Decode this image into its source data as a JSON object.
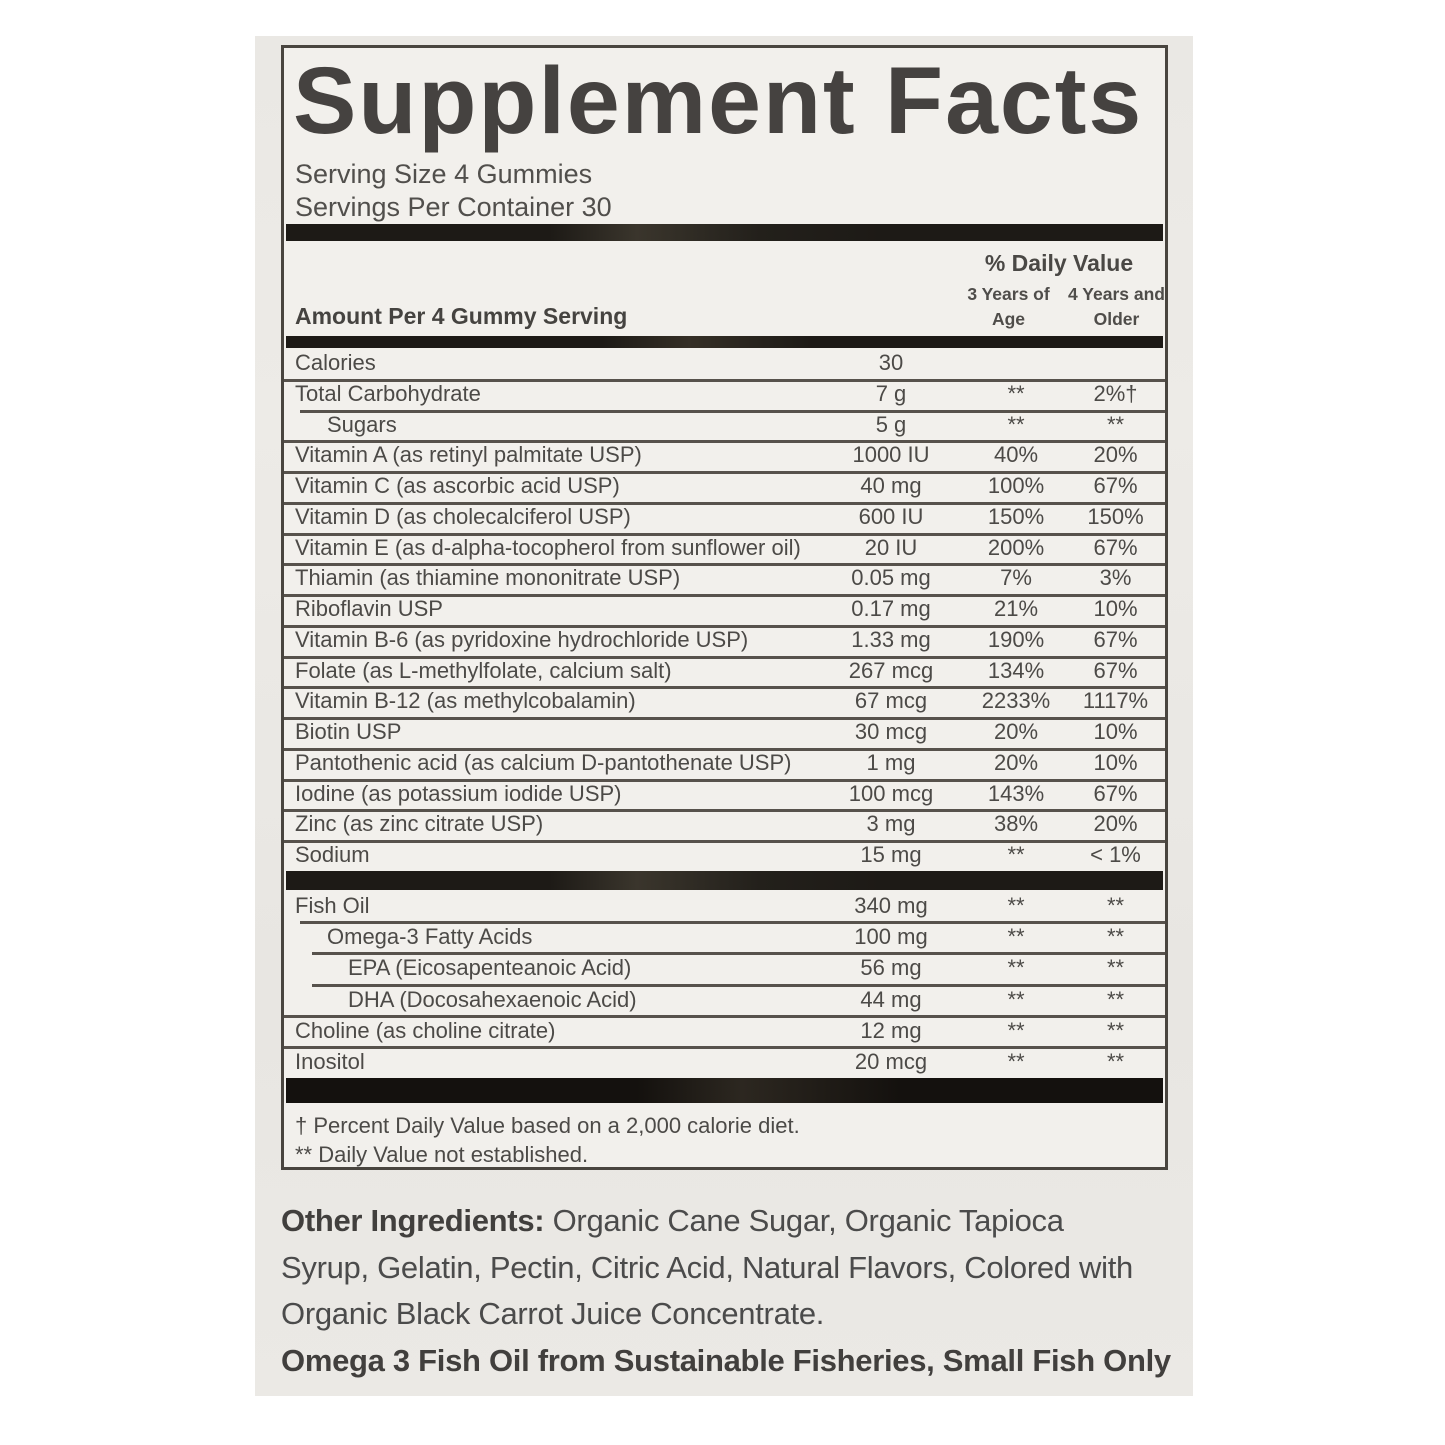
{
  "label": {
    "title": "Supplement Facts",
    "serving_size": "Serving Size 4 Gummies",
    "servings_per_container": "Servings Per Container 30",
    "daily_value_header": "% Daily Value",
    "age_col_3yr": {
      "line1": "3 Years of",
      "line2": "Age"
    },
    "age_col_4yr": {
      "line1": "4 Years and",
      "line2": "Older"
    },
    "amount_header": "Amount Per 4 Gummy Serving",
    "rows_main": [
      {
        "name": "Calories",
        "amount": "30",
        "dv3": "",
        "dv4": "",
        "indent": 0
      },
      {
        "name": "Total Carbohydrate",
        "amount": "7 g",
        "dv3": "**",
        "dv4": "2%†",
        "indent": 0
      },
      {
        "name": "Sugars",
        "amount": "5 g",
        "dv3": "**",
        "dv4": "**",
        "indent": 1
      },
      {
        "name": "Vitamin A (as retinyl palmitate USP)",
        "amount": "1000 IU",
        "dv3": "40%",
        "dv4": "20%",
        "indent": 0
      },
      {
        "name": "Vitamin C (as ascorbic acid USP)",
        "amount": "40 mg",
        "dv3": "100%",
        "dv4": "67%",
        "indent": 0
      },
      {
        "name": "Vitamin D (as cholecalciferol USP)",
        "amount": "600 IU",
        "dv3": "150%",
        "dv4": "150%",
        "indent": 0
      },
      {
        "name": "Vitamin E (as d-alpha-tocopherol from sunflower oil)",
        "amount": "20 IU",
        "dv3": "200%",
        "dv4": "67%",
        "indent": 0
      },
      {
        "name": "Thiamin (as thiamine mononitrate USP)",
        "amount": "0.05 mg",
        "dv3": "7%",
        "dv4": "3%",
        "indent": 0
      },
      {
        "name": "Riboflavin USP",
        "amount": "0.17 mg",
        "dv3": "21%",
        "dv4": "10%",
        "indent": 0
      },
      {
        "name": "Vitamin B-6 (as pyridoxine hydrochloride USP)",
        "amount": "1.33 mg",
        "dv3": "190%",
        "dv4": "67%",
        "indent": 0
      },
      {
        "name": "Folate (as L-methylfolate, calcium salt)",
        "amount": "267 mcg",
        "dv3": "134%",
        "dv4": "67%",
        "indent": 0
      },
      {
        "name": "Vitamin B-12 (as methylcobalamin)",
        "amount": "67 mcg",
        "dv3": "2233%",
        "dv4": "1117%",
        "indent": 0
      },
      {
        "name": "Biotin USP",
        "amount": "30 mcg",
        "dv3": "20%",
        "dv4": "10%",
        "indent": 0
      },
      {
        "name": "Pantothenic acid (as calcium D-pantothenate USP)",
        "amount": "1 mg",
        "dv3": "20%",
        "dv4": "10%",
        "indent": 0
      },
      {
        "name": "Iodine (as potassium iodide USP)",
        "amount": "100 mcg",
        "dv3": "143%",
        "dv4": "67%",
        "indent": 0
      },
      {
        "name": "Zinc (as zinc citrate USP)",
        "amount": "3 mg",
        "dv3": "38%",
        "dv4": "20%",
        "indent": 0
      },
      {
        "name": "Sodium",
        "amount": "15 mg",
        "dv3": "**",
        "dv4": "< 1%",
        "indent": 0
      }
    ],
    "rows_oil": [
      {
        "name": "Fish Oil",
        "amount": "340 mg",
        "dv3": "**",
        "dv4": "**",
        "indent": 0
      },
      {
        "name": "Omega-3 Fatty Acids",
        "amount": "100 mg",
        "dv3": "**",
        "dv4": "**",
        "indent": 1
      },
      {
        "name": "EPA (Eicosapenteanoic Acid)",
        "amount": "56 mg",
        "dv3": "**",
        "dv4": "**",
        "indent": 2
      },
      {
        "name": "DHA (Docosahexaenoic Acid)",
        "amount": "44 mg",
        "dv3": "**",
        "dv4": "**",
        "indent": 2
      },
      {
        "name": "Choline (as choline citrate)",
        "amount": "12 mg",
        "dv3": "**",
        "dv4": "**",
        "indent": 0
      },
      {
        "name": "Inositol",
        "amount": "20 mcg",
        "dv3": "**",
        "dv4": "**",
        "indent": 0
      }
    ],
    "footnotes": [
      "† Percent Daily Value based on a 2,000 calorie diet.",
      "** Daily Value not established."
    ]
  },
  "other_ingredients": {
    "label": "Other Ingredients:",
    "line1_rest": " Organic Cane Sugar, Organic Tapioca",
    "line2": "Syrup, Gelatin, Pectin, Citric Acid, Natural Flavors, Colored with",
    "line3": "Organic Black Carrot Juice Concentrate.",
    "sustainability_note": "Omega 3 Fish Oil from Sustainable Fisheries, Small Fish Only"
  },
  "colors": {
    "label_background": "#e9e7e3",
    "panel_background": "#f2f0ec",
    "divider_bar": "#1d1a16",
    "text": "#4c4a47"
  }
}
